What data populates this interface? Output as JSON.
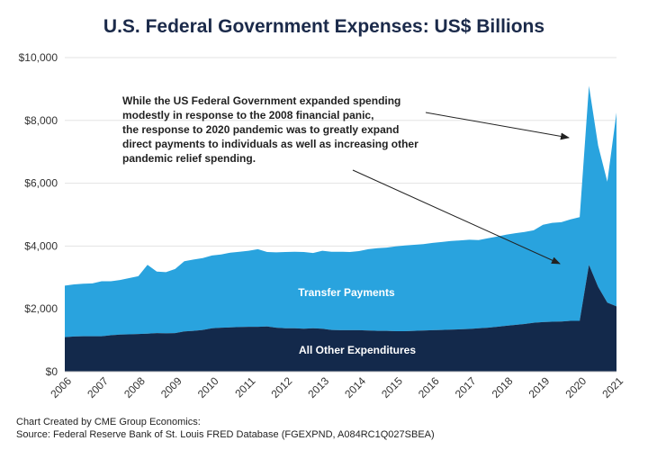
{
  "title": "U.S. Federal Government Expenses: US$ Billions",
  "annotation_lines": [
    "While the US Federal Government expanded spending",
    "modestly in response to the 2008 financial panic,",
    "the response to 2020 pandemic was to greatly expand",
    "direct payments to individuals as well as increasing other",
    "pandemic relief spending."
  ],
  "footer": {
    "line1": "Chart Created by CME Group Economics:",
    "line2": "Source: Federal Reserve Bank of St. Louis FRED Database (FGEXPND, A084RC1Q027SBEA)"
  },
  "colors": {
    "transfer": "#29a3de",
    "other": "#13294b",
    "grid": "#e3e3e3",
    "title": "#1b2a4a"
  },
  "chart_data": {
    "type": "area",
    "title": "U.S. Federal Government Expenses: US$ Billions",
    "xlim": [
      2006,
      2021
    ],
    "ylim": [
      0,
      10000
    ],
    "y_ticks": [
      0,
      2000,
      4000,
      6000,
      8000,
      10000
    ],
    "y_tick_labels": [
      "$0",
      "$2,000",
      "$4,000",
      "$6,000",
      "$8,000",
      "$10,000"
    ],
    "x_tick_labels": [
      "2006",
      "2007",
      "2008",
      "2009",
      "2010",
      "2011",
      "2012",
      "2013",
      "2014",
      "2015",
      "2016",
      "2017",
      "2018",
      "2019",
      "2020",
      "2021"
    ],
    "stacked": true,
    "x": [
      2006.0,
      2006.25,
      2006.5,
      2006.75,
      2007.0,
      2007.25,
      2007.5,
      2007.75,
      2008.0,
      2008.25,
      2008.5,
      2008.75,
      2009.0,
      2009.25,
      2009.5,
      2009.75,
      2010.0,
      2010.25,
      2010.5,
      2010.75,
      2011.0,
      2011.25,
      2011.5,
      2011.75,
      2012.0,
      2012.25,
      2012.5,
      2012.75,
      2013.0,
      2013.25,
      2013.5,
      2013.75,
      2014.0,
      2014.25,
      2014.5,
      2014.75,
      2015.0,
      2015.25,
      2015.5,
      2015.75,
      2016.0,
      2016.25,
      2016.5,
      2016.75,
      2017.0,
      2017.25,
      2017.5,
      2017.75,
      2018.0,
      2018.25,
      2018.5,
      2018.75,
      2019.0,
      2019.25,
      2019.5,
      2019.75,
      2020.0,
      2020.25,
      2020.5,
      2020.75,
      2021.0
    ],
    "series": [
      {
        "name": "All Other Expenditures",
        "values": [
          1100,
          1120,
          1130,
          1130,
          1130,
          1160,
          1180,
          1190,
          1200,
          1210,
          1230,
          1220,
          1230,
          1280,
          1300,
          1330,
          1380,
          1400,
          1410,
          1420,
          1430,
          1430,
          1440,
          1400,
          1380,
          1380,
          1370,
          1380,
          1370,
          1330,
          1320,
          1320,
          1320,
          1310,
          1300,
          1300,
          1290,
          1290,
          1300,
          1310,
          1320,
          1330,
          1340,
          1350,
          1360,
          1380,
          1400,
          1430,
          1460,
          1490,
          1520,
          1560,
          1580,
          1590,
          1600,
          1620,
          1620,
          3400,
          2700,
          2200,
          2080
        ]
      },
      {
        "name": "Transfer Payments",
        "values": [
          1640,
          1660,
          1670,
          1680,
          1750,
          1720,
          1740,
          1790,
          1840,
          2190,
          1960,
          1950,
          2040,
          2240,
          2270,
          2290,
          2320,
          2330,
          2380,
          2400,
          2420,
          2470,
          2370,
          2400,
          2430,
          2440,
          2440,
          2400,
          2480,
          2490,
          2500,
          2490,
          2520,
          2590,
          2630,
          2650,
          2700,
          2730,
          2740,
          2750,
          2780,
          2800,
          2820,
          2830,
          2840,
          2810,
          2850,
          2870,
          2900,
          2920,
          2930,
          2940,
          3100,
          3150,
          3160,
          3230,
          3300,
          5700,
          4500,
          3850,
          6170
        ]
      }
    ],
    "area_labels": [
      "Transfer Payments",
      "All Other Expenditures"
    ]
  }
}
